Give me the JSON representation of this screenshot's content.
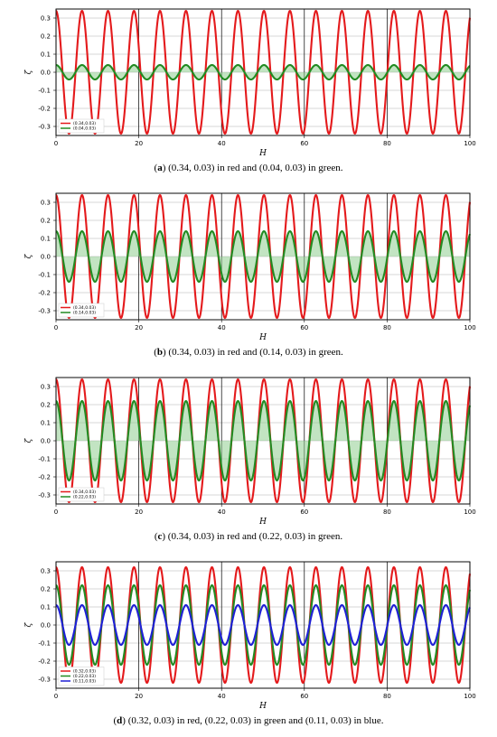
{
  "chart_data": [
    {
      "type": "line",
      "panel_label": "a",
      "caption": "(0.34, 0.03) in red and (0.04, 0.03) in green.",
      "xlabel": "H",
      "ylabel": "ζ",
      "xlim": [
        0,
        100
      ],
      "ylim": [
        -0.35,
        0.35
      ],
      "xticks": [
        "0",
        "20",
        "40",
        "60",
        "80",
        "100"
      ],
      "yticks": [
        "0.3",
        "0.2",
        "0.1",
        "0.0",
        "-0.1",
        "-0.2",
        "-0.3"
      ],
      "grid": true,
      "legend_position": "bottom-left",
      "fill_between_last_and_zero": true,
      "series": [
        {
          "name": "(0.34,0.03)",
          "color": "#e41a1c",
          "amplitude": 0.34,
          "period": 6.28,
          "shape": "cosine"
        },
        {
          "name": "(0.04,0.03)",
          "color": "#228b22",
          "amplitude": 0.04,
          "period": 6.28,
          "shape": "cosine"
        }
      ]
    },
    {
      "type": "line",
      "panel_label": "b",
      "caption": "(0.34, 0.03) in red and (0.14, 0.03) in green.",
      "xlabel": "H",
      "ylabel": "ζ",
      "xlim": [
        0,
        100
      ],
      "ylim": [
        -0.35,
        0.35
      ],
      "xticks": [
        "0",
        "20",
        "40",
        "60",
        "80",
        "100"
      ],
      "yticks": [
        "0.3",
        "0.2",
        "0.1",
        "0.0",
        "-0.1",
        "-0.2",
        "-0.3"
      ],
      "grid": true,
      "legend_position": "bottom-left",
      "fill_between_last_and_zero": true,
      "series": [
        {
          "name": "(0.34,0.03)",
          "color": "#e41a1c",
          "amplitude": 0.34,
          "period": 6.28,
          "shape": "cosine"
        },
        {
          "name": "(0.14,0.03)",
          "color": "#228b22",
          "amplitude": 0.14,
          "period": 6.28,
          "shape": "cosine"
        }
      ]
    },
    {
      "type": "line",
      "panel_label": "c",
      "caption": "(0.34, 0.03) in red and (0.22, 0.03) in green.",
      "xlabel": "H",
      "ylabel": "ζ",
      "xlim": [
        0,
        100
      ],
      "ylim": [
        -0.35,
        0.35
      ],
      "xticks": [
        "0",
        "20",
        "40",
        "60",
        "80",
        "100"
      ],
      "yticks": [
        "0.3",
        "0.2",
        "0.1",
        "0.0",
        "-0.1",
        "-0.2",
        "-0.3"
      ],
      "grid": true,
      "legend_position": "bottom-left",
      "fill_between_last_and_zero": true,
      "series": [
        {
          "name": "(0.34,0.03)",
          "color": "#e41a1c",
          "amplitude": 0.34,
          "period": 6.28,
          "shape": "cosine"
        },
        {
          "name": "(0.22,0.03)",
          "color": "#228b22",
          "amplitude": 0.22,
          "period": 6.28,
          "shape": "cosine"
        }
      ]
    },
    {
      "type": "line",
      "panel_label": "d",
      "caption": "(0.32, 0.03) in red, (0.22, 0.03) in green and (0.11, 0.03) in blue.",
      "xlabel": "H",
      "ylabel": "ζ",
      "xlim": [
        0,
        100
      ],
      "ylim": [
        -0.35,
        0.35
      ],
      "xticks": [
        "0",
        "20",
        "40",
        "60",
        "80",
        "100"
      ],
      "yticks": [
        "0.3",
        "0.2",
        "0.1",
        "0.0",
        "-0.1",
        "-0.2",
        "-0.3"
      ],
      "grid": true,
      "legend_position": "bottom-left",
      "fill_between_last_and_zero": false,
      "series": [
        {
          "name": "(0.32,0.03)",
          "color": "#e41a1c",
          "amplitude": 0.32,
          "period": 6.28,
          "shape": "cosine"
        },
        {
          "name": "(0.22,0.03)",
          "color": "#228b22",
          "amplitude": 0.22,
          "period": 6.28,
          "shape": "cosine"
        },
        {
          "name": "(0.11,0.03)",
          "color": "#1f1fd6",
          "amplitude": 0.11,
          "period": 6.28,
          "shape": "cosine"
        }
      ]
    }
  ]
}
